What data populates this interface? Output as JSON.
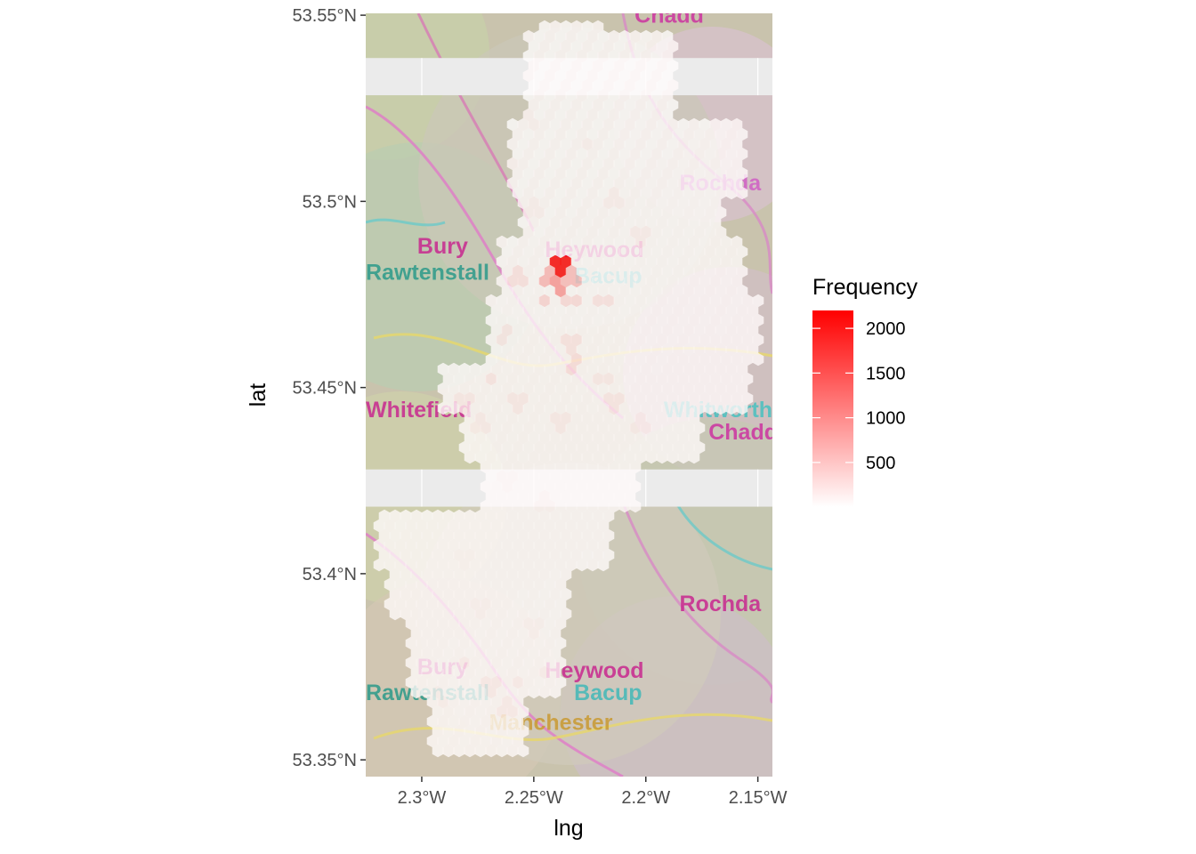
{
  "chart_data": {
    "type": "heatmap",
    "subtype": "hexbin over tiled map background",
    "xlabel": "lng",
    "ylabel": "lat",
    "xlim": [
      -2.325,
      -2.1435
    ],
    "ylim": [
      53.3455,
      53.5505
    ],
    "x_ticks": [
      {
        "value": -2.3,
        "label": "2.3°W"
      },
      {
        "value": -2.25,
        "label": "2.25°W"
      },
      {
        "value": -2.2,
        "label": "2.2°W"
      },
      {
        "value": -2.15,
        "label": "2.15°W"
      }
    ],
    "y_ticks": [
      {
        "value": 53.35,
        "label": "53.35°N"
      },
      {
        "value": 53.4,
        "label": "53.4°N"
      },
      {
        "value": 53.45,
        "label": "53.45°N"
      },
      {
        "value": 53.5,
        "label": "53.5°N"
      },
      {
        "value": 53.55,
        "label": "53.55°N"
      }
    ],
    "gaps": [
      {
        "lat_min": 53.5285,
        "lat_max": 53.5385
      },
      {
        "lat_min": 53.418,
        "lat_max": 53.428
      }
    ],
    "background_map_labels": [
      {
        "text": "Chadd",
        "lng": -2.205,
        "lat": 53.548,
        "color": "#cc33a0"
      },
      {
        "text": "Rochda",
        "lng": -2.185,
        "lat": 53.503,
        "color": "#d05fc4"
      },
      {
        "text": "Bury",
        "lng": -2.302,
        "lat": 53.486,
        "color": "#c8288f"
      },
      {
        "text": "Heywood",
        "lng": -2.245,
        "lat": 53.485,
        "color": "#c8288f"
      },
      {
        "text": "Rawtenstall",
        "lng": -2.325,
        "lat": 53.479,
        "color": "#2c9a8a"
      },
      {
        "text": "Bacup",
        "lng": -2.232,
        "lat": 53.478,
        "color": "#42b8b8"
      },
      {
        "text": "Whitefield",
        "lng": -2.325,
        "lat": 53.442,
        "color": "#c8288f"
      },
      {
        "text": "Whitworth",
        "lng": -2.192,
        "lat": 53.442,
        "color": "#48c0c0"
      },
      {
        "text": "Chadde",
        "lng": -2.172,
        "lat": 53.436,
        "color": "#cc33a0"
      },
      {
        "text": "Rochda",
        "lng": -2.185,
        "lat": 53.39,
        "color": "#c8288f"
      },
      {
        "text": "Bury",
        "lng": -2.302,
        "lat": 53.373,
        "color": "#c8288f"
      },
      {
        "text": "Heywood",
        "lng": -2.245,
        "lat": 53.372,
        "color": "#c8288f"
      },
      {
        "text": "Rawtenstall",
        "lng": -2.325,
        "lat": 53.366,
        "color": "#2c9a8a"
      },
      {
        "text": "Bacup",
        "lng": -2.232,
        "lat": 53.366,
        "color": "#42b8b8"
      },
      {
        "text": "Manchester",
        "lng": -2.27,
        "lat": 53.358,
        "color": "#c99a32"
      }
    ],
    "hexbin": {
      "approx_bin_width_deg": 0.0075,
      "hot_spots": [
        {
          "lng": -2.2385,
          "lat": 53.4825,
          "frequency": 2200
        },
        {
          "lng": -2.2385,
          "lat": 53.4765,
          "frequency": 900
        },
        {
          "lng": -2.2445,
          "lat": 53.4795,
          "frequency": 620
        },
        {
          "lng": -2.2325,
          "lat": 53.4795,
          "frequency": 580
        },
        {
          "lng": -2.2445,
          "lat": 53.4735,
          "frequency": 350
        },
        {
          "lng": -2.2325,
          "lat": 53.4735,
          "frequency": 300
        },
        {
          "lng": -2.2565,
          "lat": 53.4795,
          "frequency": 230
        },
        {
          "lng": -2.2205,
          "lat": 53.4735,
          "frequency": 220
        },
        {
          "lng": -2.2325,
          "lat": 53.4555,
          "frequency": 260
        },
        {
          "lng": -2.2325,
          "lat": 53.4615,
          "frequency": 200
        },
        {
          "lng": -2.2625,
          "lat": 53.4645,
          "frequency": 180
        },
        {
          "lng": -2.2685,
          "lat": 53.4525,
          "frequency": 170
        },
        {
          "lng": -2.2145,
          "lat": 53.4465,
          "frequency": 160
        },
        {
          "lng": -2.2805,
          "lat": 53.4465,
          "frequency": 150
        },
        {
          "lng": -2.2565,
          "lat": 53.4465,
          "frequency": 150
        },
        {
          "lng": -2.2385,
          "lat": 53.4405,
          "frequency": 140
        },
        {
          "lng": -2.2205,
          "lat": 53.4525,
          "frequency": 150
        },
        {
          "lng": -2.2745,
          "lat": 53.4405,
          "frequency": 120
        },
        {
          "lng": -2.2025,
          "lat": 53.4405,
          "frequency": 120
        },
        {
          "lng": -2.2025,
          "lat": 53.4915,
          "frequency": 120
        },
        {
          "lng": -2.2145,
          "lat": 53.5005,
          "frequency": 110
        },
        {
          "lng": -2.2505,
          "lat": 53.4975,
          "frequency": 100
        },
        {
          "lng": -2.2265,
          "lat": 53.5155,
          "frequency": 100
        },
        {
          "lng": -2.2625,
          "lat": 53.5095,
          "frequency": 90
        },
        {
          "lng": -2.2505,
          "lat": 53.5215,
          "frequency": 90
        },
        {
          "lng": -2.2685,
          "lat": 53.3705,
          "frequency": 140
        },
        {
          "lng": -2.2565,
          "lat": 53.3705,
          "frequency": 120
        },
        {
          "lng": -2.2805,
          "lat": 53.3765,
          "frequency": 110
        },
        {
          "lng": -2.2625,
          "lat": 53.3645,
          "frequency": 120
        },
        {
          "lng": -2.2925,
          "lat": 53.3675,
          "frequency": 90
        },
        {
          "lng": -2.2745,
          "lat": 53.3915,
          "frequency": 80
        },
        {
          "lng": -2.2805,
          "lat": 53.4035,
          "frequency": 70
        },
        {
          "lng": -2.2505,
          "lat": 53.3855,
          "frequency": 80
        },
        {
          "lng": -2.2445,
          "lat": 53.3735,
          "frequency": 100
        },
        {
          "lng": -2.2445,
          "lat": 53.4185,
          "frequency": 80
        },
        {
          "lng": -2.2625,
          "lat": 53.4245,
          "frequency": 70
        }
      ]
    },
    "legend": {
      "title": "Frequency",
      "placement": "right",
      "range": [
        1,
        2200
      ],
      "low_color": "#ffffff",
      "high_color": "#ff0000",
      "breaks": [
        500,
        1000,
        1500,
        2000
      ]
    }
  }
}
